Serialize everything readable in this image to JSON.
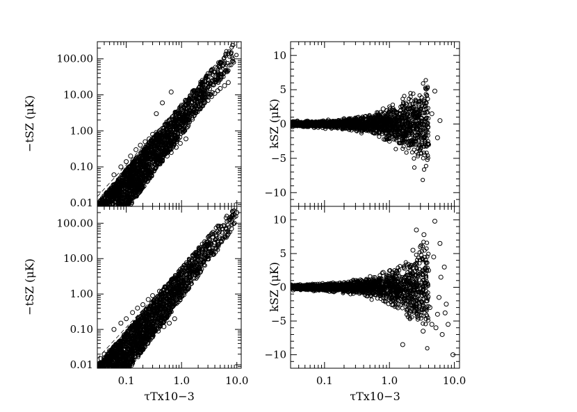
{
  "chart_data": [
    {
      "type": "scatter",
      "panel": "top-left",
      "xlabel": "",
      "ylabel": "−tSZ (μK)",
      "xscale": "log",
      "yscale": "log",
      "xlim": [
        0.03,
        12
      ],
      "ylim": [
        0.008,
        300
      ],
      "xticks": [
        0.1,
        1.0,
        10.0
      ],
      "xticklabels": [],
      "yticks": [
        0.01,
        0.1,
        1,
        10,
        100
      ],
      "yticklabels": [
        "0.01",
        "0.10",
        "1.00",
        "10.00",
        "100.00"
      ],
      "guide_line": {
        "style": "dashed",
        "x": [
          0.03,
          12
        ],
        "y": [
          0.015,
          360
        ]
      },
      "series": [
        {
          "x": [
            0.04,
            0.05,
            0.06,
            0.07,
            0.08,
            0.09,
            0.1,
            0.11,
            0.12,
            0.13,
            0.14,
            0.15,
            0.16,
            0.18,
            0.2,
            0.22,
            0.24,
            0.26,
            0.28,
            0.3,
            0.33,
            0.36,
            0.4,
            0.45,
            0.5,
            0.55,
            0.6,
            0.7,
            0.8,
            0.9,
            1.0,
            1.1,
            1.2,
            1.4,
            1.6,
            1.8,
            2.0,
            2.3,
            2.6,
            3.0,
            3.5,
            4.0,
            4.5,
            5.0,
            6.0,
            7.0,
            0.06,
            0.08,
            0.1,
            0.12,
            0.15,
            0.18,
            0.22,
            0.26,
            0.3,
            0.35,
            0.4,
            0.5,
            0.6,
            0.7,
            0.8,
            1.0,
            1.2,
            1.5,
            2.0,
            2.5,
            0.05,
            0.07,
            0.09,
            0.11,
            0.14,
            0.17,
            0.21,
            0.25,
            0.3,
            0.38,
            0.45,
            0.55,
            0.65,
            0.8,
            0.95,
            1.2,
            0.35,
            0.45,
            0.65
          ],
          "y": [
            0.01,
            0.012,
            0.02,
            0.025,
            0.03,
            0.035,
            0.04,
            0.05,
            0.055,
            0.06,
            0.07,
            0.08,
            0.09,
            0.11,
            0.13,
            0.15,
            0.17,
            0.2,
            0.22,
            0.25,
            0.3,
            0.33,
            0.4,
            0.48,
            0.55,
            0.65,
            0.75,
            0.9,
            1.1,
            1.3,
            1.5,
            1.8,
            2.0,
            2.5,
            3.0,
            3.5,
            4.0,
            5.0,
            6.0,
            7.0,
            9.0,
            11.0,
            13.0,
            15.0,
            18.0,
            22.0,
            0.06,
            0.1,
            0.14,
            0.2,
            0.3,
            0.4,
            0.5,
            0.6,
            0.8,
            0.9,
            1.0,
            1.5,
            2.0,
            2.5,
            3.0,
            4.0,
            5.0,
            6.0,
            8.0,
            10.0,
            0.015,
            0.02,
            0.025,
            0.03,
            0.04,
            0.05,
            0.06,
            0.08,
            0.1,
            0.12,
            0.15,
            0.2,
            0.25,
            0.35,
            0.45,
            0.6,
            3.0,
            6.0,
            12.0
          ]
        }
      ]
    },
    {
      "type": "scatter",
      "panel": "top-right",
      "xlabel": "",
      "ylabel": "kSZ (μK)",
      "xscale": "log",
      "yscale": "linear",
      "xlim": [
        0.03,
        12
      ],
      "ylim": [
        -12,
        12
      ],
      "xticks": [
        0.1,
        1.0,
        10.0
      ],
      "xticklabels": [],
      "yticks": [
        -10,
        -5,
        0,
        5,
        10
      ],
      "yticklabels": [
        "−10",
        "−5",
        "0",
        "5",
        "10"
      ],
      "series": [
        {
          "x": [
            0.05,
            0.07,
            0.1,
            0.13,
            0.16,
            0.2,
            0.25,
            0.3,
            0.35,
            0.4,
            0.45,
            0.5,
            0.55,
            0.6,
            0.65,
            0.7,
            0.8,
            0.9,
            1.0,
            1.1,
            1.2,
            1.3,
            1.5,
            1.7,
            2.0,
            2.2,
            2.5,
            2.8,
            3.0,
            3.5,
            4.0,
            4.5,
            5.0,
            5.5,
            6.0,
            0.6,
            0.8,
            1.0,
            1.2,
            1.5,
            1.8,
            2.1,
            2.5,
            3.0,
            3.5,
            1.6,
            2.3
          ],
          "y": [
            0.05,
            -0.05,
            0.1,
            -0.1,
            0.15,
            -0.2,
            0.3,
            -0.3,
            0.4,
            -0.5,
            0.6,
            -0.7,
            0.8,
            -0.9,
            1.0,
            -1.2,
            1.3,
            -1.5,
            1.5,
            -1.8,
            1.8,
            -2.0,
            2.0,
            -2.5,
            2.2,
            -3.0,
            2.5,
            -3.5,
            2.0,
            -4.5,
            -3.0,
            1.5,
            4.8,
            -2.0,
            0.5,
            1.2,
            2.2,
            -2.5,
            0.8,
            2.5,
            -1.5,
            1.2,
            -2.5,
            3.0,
            -1.8,
            2.5,
            -0.5
          ]
        }
      ]
    },
    {
      "type": "scatter",
      "panel": "bottom-left",
      "xlabel": "τTx10−3",
      "ylabel": "−tSZ (μK)",
      "xscale": "log",
      "yscale": "log",
      "xlim": [
        0.03,
        12
      ],
      "ylim": [
        0.008,
        300
      ],
      "xticks": [
        0.1,
        1.0,
        10.0
      ],
      "xticklabels": [
        "0.1",
        "1.0",
        "10.0"
      ],
      "yticks": [
        0.01,
        0.1,
        1,
        10,
        100
      ],
      "yticklabels": [
        "0.01",
        "0.10",
        "1.00",
        "10.00",
        "100.00"
      ],
      "guide_line": {
        "style": "dashed",
        "x": [
          0.03,
          12
        ],
        "y": [
          0.015,
          360
        ]
      },
      "series": [
        {
          "x": [
            0.035,
            0.04,
            0.05,
            0.06,
            0.07,
            0.08,
            0.09,
            0.1,
            0.11,
            0.12,
            0.13,
            0.14,
            0.15,
            0.17,
            0.19,
            0.21,
            0.24,
            0.27,
            0.3,
            0.34,
            0.38,
            0.42,
            0.47,
            0.52,
            0.58,
            0.65,
            0.72,
            0.8,
            0.9,
            1.0,
            1.1,
            1.25,
            1.4,
            1.6,
            1.8,
            2.0,
            2.3,
            2.6,
            3.0,
            3.4,
            4.0,
            4.6,
            5.3,
            6.0,
            7.0,
            8.0,
            9.0,
            10.0,
            0.06,
            0.08,
            0.1,
            0.13,
            0.16,
            0.2,
            0.25,
            0.3,
            0.4,
            0.5,
            0.6,
            0.8,
            1.0,
            1.3,
            1.6,
            2.0,
            0.05,
            0.07,
            0.09,
            0.12,
            0.15,
            0.19,
            0.24,
            0.3,
            0.38,
            0.48,
            0.6,
            0.75
          ],
          "y": [
            0.015,
            0.02,
            0.025,
            0.03,
            0.04,
            0.045,
            0.05,
            0.06,
            0.07,
            0.08,
            0.09,
            0.1,
            0.12,
            0.14,
            0.16,
            0.2,
            0.25,
            0.3,
            0.35,
            0.4,
            0.5,
            0.6,
            0.7,
            0.8,
            1.0,
            1.2,
            1.4,
            1.6,
            2.0,
            2.4,
            2.8,
            3.5,
            4.0,
            5.0,
            6.0,
            7.0,
            9.0,
            10.0,
            13.0,
            15.0,
            20.0,
            25.0,
            30.0,
            40.0,
            50.0,
            70.0,
            100.0,
            200.0,
            0.1,
            0.15,
            0.2,
            0.3,
            0.4,
            0.5,
            0.7,
            0.9,
            1.2,
            1.6,
            2.0,
            2.8,
            4.0,
            5.0,
            6.5,
            9.0,
            0.012,
            0.015,
            0.02,
            0.025,
            0.035,
            0.045,
            0.055,
            0.07,
            0.09,
            0.12,
            0.15,
            0.2
          ]
        }
      ]
    },
    {
      "type": "scatter",
      "panel": "bottom-right",
      "xlabel": "τTx10−3",
      "ylabel": "kSZ (μK)",
      "xscale": "log",
      "yscale": "linear",
      "xlim": [
        0.03,
        12
      ],
      "ylim": [
        -12,
        12
      ],
      "xticks": [
        0.1,
        1.0,
        10.0
      ],
      "xticklabels": [
        "0.1",
        "1.0",
        "10.0"
      ],
      "yticks": [
        -10,
        -5,
        0,
        5,
        10
      ],
      "yticklabels": [
        "−10",
        "−5",
        "0",
        "5",
        "10"
      ],
      "series": [
        {
          "x": [
            0.05,
            0.07,
            0.1,
            0.13,
            0.16,
            0.2,
            0.25,
            0.3,
            0.35,
            0.4,
            0.45,
            0.5,
            0.55,
            0.6,
            0.7,
            0.8,
            0.9,
            1.0,
            1.1,
            1.2,
            1.3,
            1.5,
            1.7,
            2.0,
            2.2,
            2.4,
            2.6,
            2.8,
            3.0,
            3.3,
            3.6,
            4.0,
            4.5,
            5.0,
            5.5,
            6.0,
            6.5,
            7.0,
            7.5,
            8.0,
            9.5,
            1.6,
            2.3,
            2.7,
            3.4,
            4.2,
            5.2,
            6.2,
            7.2,
            1.9,
            3.8,
            4.8,
            5.8,
            0.8,
            1.1
          ],
          "y": [
            0.05,
            -0.05,
            0.1,
            -0.15,
            0.2,
            -0.25,
            0.3,
            -0.4,
            0.5,
            -0.6,
            0.8,
            -0.9,
            1.0,
            -1.1,
            1.3,
            -1.5,
            1.6,
            -1.8,
            2.0,
            -2.0,
            2.4,
            -2.5,
            2.8,
            -3.0,
            3.2,
            -3.5,
            8.5,
            -4.5,
            6.0,
            -6.5,
            4.0,
            2.5,
            -5.5,
            9.8,
            -4.0,
            6.5,
            -7.0,
            3.0,
            -2.5,
            -5.5,
            -10.0,
            -8.5,
            5.5,
            -4.0,
            7.8,
            -3.0,
            -6.0,
            1.5,
            -3.8,
            1.8,
            -2.0,
            4.5,
            -1.5,
            2.2,
            -2.6
          ]
        }
      ]
    }
  ]
}
